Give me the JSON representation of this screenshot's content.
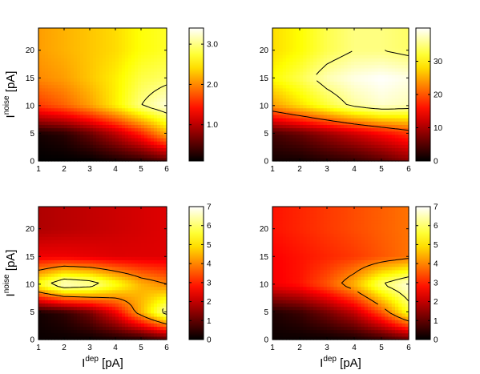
{
  "chart_data": [
    {
      "type": "heatmap",
      "panel": "top-left",
      "colormap": "hot",
      "x": [
        1,
        2,
        3,
        4,
        5,
        6
      ],
      "y": [
        0,
        5,
        10,
        15,
        20
      ],
      "xlim": [
        1,
        6
      ],
      "ylim": [
        0,
        24
      ],
      "x_ticks": [
        "1",
        "2",
        "3",
        "4",
        "5",
        "6"
      ],
      "y_ticks": [
        "0",
        "5",
        "10",
        "15",
        "20"
      ],
      "xlabel": "",
      "ylabel": {
        "base": "I",
        "sup": "noise",
        "unit": " [pA]"
      },
      "colorbar": {
        "range": [
          0.1,
          3.4
        ],
        "ticks": [
          "1.0",
          "2.0",
          "3.0"
        ],
        "tick_values": [
          1.0,
          2.0,
          3.0
        ]
      },
      "values": [
        [
          0.1,
          0.1,
          0.1,
          0.2,
          0.3,
          0.5
        ],
        [
          0.2,
          0.3,
          0.6,
          1.0,
          1.5,
          2.2
        ],
        [
          1.6,
          1.8,
          2.1,
          2.5,
          3.0,
          3.3
        ],
        [
          2.0,
          2.1,
          2.3,
          2.5,
          2.8,
          2.9
        ],
        [
          2.1,
          2.2,
          2.3,
          2.4,
          2.6,
          2.7
        ]
      ],
      "contours": [
        3.0
      ]
    },
    {
      "type": "heatmap",
      "panel": "top-right",
      "colormap": "hot",
      "x": [
        1,
        2,
        3,
        4,
        5,
        6
      ],
      "y": [
        0,
        5,
        10,
        15,
        20
      ],
      "xlim": [
        1,
        6
      ],
      "ylim": [
        0,
        24
      ],
      "x_ticks": [
        "1",
        "2",
        "3",
        "4",
        "5",
        "6"
      ],
      "y_ticks": [
        "0",
        "5",
        "10",
        "15",
        "20"
      ],
      "xlabel": "",
      "ylabel": "",
      "colorbar": {
        "range": [
          0,
          40
        ],
        "ticks": [
          "0",
          "10",
          "20",
          "30"
        ],
        "tick_values": [
          0,
          10,
          20,
          30
        ]
      },
      "values": [
        [
          1,
          1,
          2,
          3,
          5,
          8
        ],
        [
          4,
          6,
          9,
          12,
          15,
          18
        ],
        [
          24,
          28,
          32,
          36,
          38,
          37
        ],
        [
          30,
          33,
          37,
          39,
          40,
          39
        ],
        [
          28,
          30,
          33,
          35,
          35,
          34
        ]
      ],
      "contours": [
        20,
        35
      ]
    },
    {
      "type": "heatmap",
      "panel": "bottom-left",
      "colormap": "hot",
      "x": [
        1,
        2,
        3,
        4,
        5,
        6
      ],
      "y": [
        0,
        5,
        10,
        15,
        20
      ],
      "xlim": [
        1,
        6
      ],
      "ylim": [
        0,
        24
      ],
      "x_ticks": [
        "1",
        "2",
        "3",
        "4",
        "5",
        "6"
      ],
      "y_ticks": [
        "0",
        "5",
        "10",
        "15",
        "20"
      ],
      "xlabel": {
        "base": "I",
        "sup": "dep",
        "unit": " [pA]"
      },
      "ylabel": {
        "base": "I",
        "sup": "noise",
        "unit": " [pA]"
      },
      "colorbar": {
        "range": [
          0,
          7
        ],
        "ticks": [
          "0",
          "1",
          "2",
          "3",
          "4",
          "5",
          "6",
          "7"
        ],
        "tick_values": [
          0,
          1,
          2,
          3,
          4,
          5,
          6,
          7
        ]
      },
      "values": [
        [
          0.1,
          0.1,
          0.1,
          0.2,
          0.3,
          0.8
        ],
        [
          0.2,
          0.5,
          1.2,
          2.5,
          4.5,
          6.5
        ],
        [
          5.5,
          6.8,
          6.5,
          5.5,
          4.5,
          4.0
        ],
        [
          2.5,
          2.5,
          2.4,
          2.3,
          2.3,
          2.3
        ],
        [
          1.8,
          1.9,
          2.0,
          2.1,
          2.2,
          2.3
        ]
      ],
      "contours": [
        4,
        6
      ]
    },
    {
      "type": "heatmap",
      "panel": "bottom-right",
      "colormap": "hot",
      "x": [
        1,
        2,
        3,
        4,
        5,
        6
      ],
      "y": [
        0,
        5,
        10,
        15,
        20
      ],
      "xlim": [
        1,
        6
      ],
      "ylim": [
        0,
        24
      ],
      "x_ticks": [
        "1",
        "2",
        "3",
        "4",
        "5",
        "6"
      ],
      "y_ticks": [
        "0",
        "5",
        "10",
        "15",
        "20"
      ],
      "xlabel": {
        "base": "I",
        "sup": "dep",
        "unit": " [pA]"
      },
      "ylabel": "",
      "colorbar": {
        "range": [
          0,
          7
        ],
        "ticks": [
          "0",
          "1",
          "2",
          "3",
          "4",
          "5",
          "6",
          "7"
        ],
        "tick_values": [
          0,
          1,
          2,
          3,
          4,
          5,
          6,
          7
        ]
      },
      "values": [
        [
          0.1,
          0.1,
          0.1,
          0.2,
          0.5,
          1.0
        ],
        [
          0.3,
          0.6,
          1.2,
          2.0,
          3.5,
          5.5
        ],
        [
          2.5,
          2.8,
          3.5,
          4.5,
          6.0,
          6.8
        ],
        [
          2.6,
          2.8,
          3.0,
          3.2,
          3.5,
          3.8
        ],
        [
          2.8,
          3.0,
          3.2,
          3.4,
          3.6,
          3.8
        ]
      ],
      "contours": [
        4,
        6
      ]
    }
  ]
}
